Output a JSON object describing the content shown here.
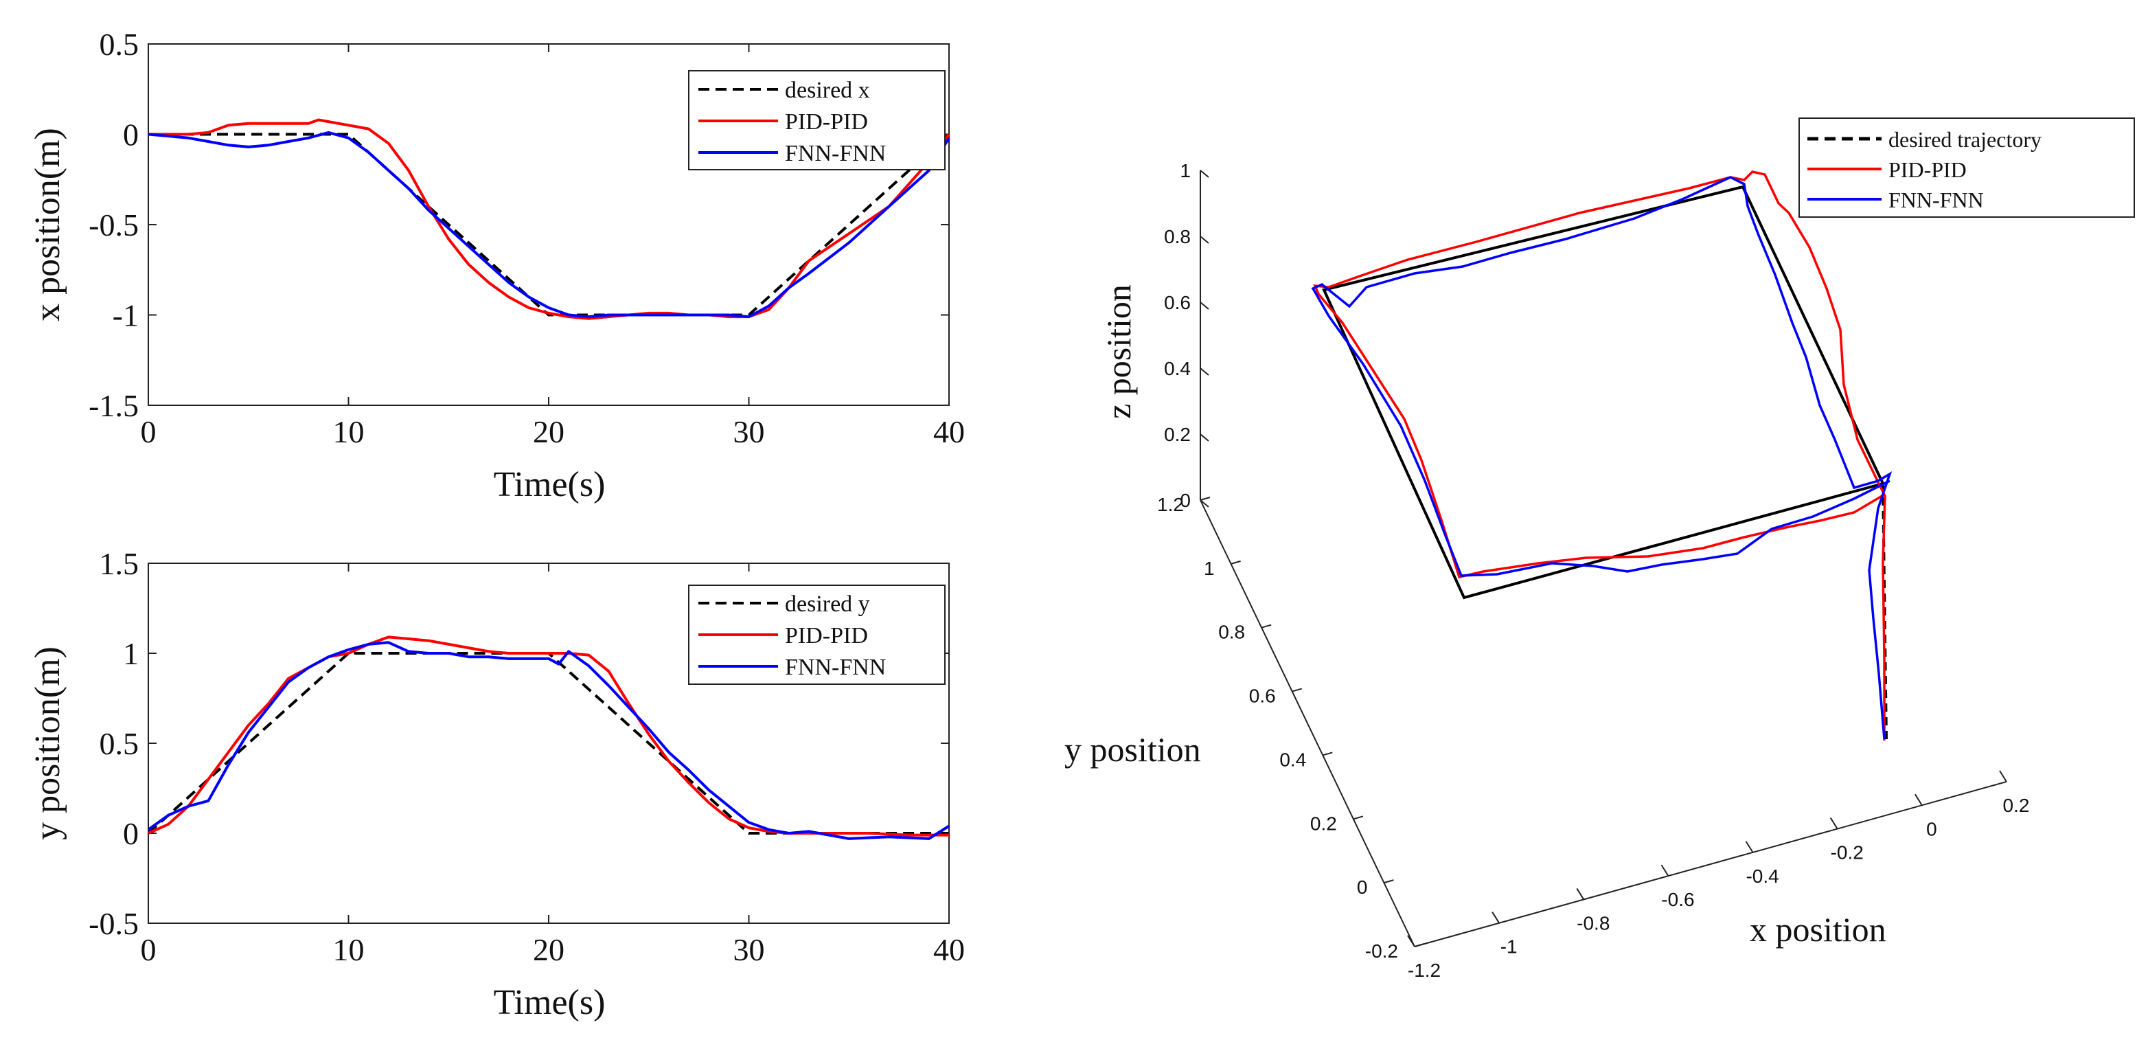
{
  "chart_data": [
    {
      "type": "line",
      "id": "x_vs_time",
      "xlabel": "Time(s)",
      "ylabel": "x position(m)",
      "xlim": [
        0,
        40
      ],
      "ylim": [
        -1.5,
        0.5
      ],
      "xticks": [
        0,
        10,
        20,
        30,
        40
      ],
      "xtick_labels": [
        "0",
        "10",
        "20",
        "30",
        "40"
      ],
      "yticks": [
        0.5,
        0,
        -0.5,
        -1,
        -1.5
      ],
      "ytick_labels": [
        "0.5",
        "0",
        "-0.5",
        "-1",
        "-1.5"
      ],
      "legend_position": "top-right",
      "series": [
        {
          "name": "desired x",
          "color": "#000000",
          "dash": "dashed",
          "x": [
            0,
            10,
            20,
            30,
            40
          ],
          "y": [
            0,
            0,
            -1,
            -1,
            0
          ]
        },
        {
          "name": "PID-PID",
          "color": "#ff0000",
          "dash": "solid",
          "x": [
            0,
            2,
            3,
            4,
            5,
            7,
            8,
            8.5,
            9,
            10,
            11,
            12,
            13,
            14,
            15,
            16,
            17,
            18,
            19,
            20,
            21,
            22,
            23,
            24,
            25,
            26,
            27,
            28,
            29,
            30,
            31,
            32,
            33,
            35,
            37,
            39,
            40
          ],
          "y": [
            0,
            0,
            0.01,
            0.05,
            0.06,
            0.06,
            0.06,
            0.08,
            0.07,
            0.05,
            0.03,
            -0.05,
            -0.2,
            -0.4,
            -0.58,
            -0.72,
            -0.82,
            -0.9,
            -0.96,
            -0.99,
            -1.01,
            -1.02,
            -1.01,
            -1.0,
            -0.99,
            -0.99,
            -1.0,
            -1.0,
            -1.01,
            -1.01,
            -0.97,
            -0.85,
            -0.7,
            -0.55,
            -0.4,
            -0.15,
            0.0
          ]
        },
        {
          "name": "FNN-FNN",
          "color": "#0000ff",
          "dash": "solid",
          "x": [
            0,
            2,
            3,
            4,
            5,
            6,
            7,
            8,
            9,
            10,
            11,
            12,
            13,
            14,
            15,
            16,
            17,
            18,
            19,
            20,
            21,
            22,
            23,
            24,
            25,
            26,
            27,
            28,
            29,
            30,
            31,
            32,
            33,
            35,
            37,
            39,
            40
          ],
          "y": [
            0,
            -0.02,
            -0.04,
            -0.06,
            -0.07,
            -0.06,
            -0.04,
            -0.02,
            0.01,
            -0.02,
            -0.1,
            -0.2,
            -0.3,
            -0.42,
            -0.52,
            -0.62,
            -0.72,
            -0.82,
            -0.9,
            -0.96,
            -1.0,
            -1.01,
            -1.0,
            -1.0,
            -1.0,
            -1.0,
            -1.0,
            -1.0,
            -1.0,
            -1.01,
            -0.95,
            -0.85,
            -0.77,
            -0.6,
            -0.4,
            -0.2,
            -0.02
          ]
        }
      ]
    },
    {
      "type": "line",
      "id": "y_vs_time",
      "xlabel": "Time(s)",
      "ylabel": "y position(m)",
      "xlim": [
        0,
        40
      ],
      "ylim": [
        -0.5,
        1.5
      ],
      "xticks": [
        0,
        10,
        20,
        30,
        40
      ],
      "xtick_labels": [
        "0",
        "10",
        "20",
        "30",
        "40"
      ],
      "yticks": [
        1.5,
        1,
        0.5,
        0,
        -0.5
      ],
      "ytick_labels": [
        "1.5",
        "1",
        "0.5",
        "0",
        "-0.5"
      ],
      "legend_position": "top-right",
      "series": [
        {
          "name": "desired y",
          "color": "#000000",
          "dash": "dashed",
          "x": [
            0,
            10,
            20,
            30,
            40
          ],
          "y": [
            0,
            1,
            1,
            0,
            0
          ]
        },
        {
          "name": "PID-PID",
          "color": "#ff0000",
          "dash": "solid",
          "x": [
            0,
            1,
            2,
            3,
            4,
            5,
            6,
            7,
            8,
            9,
            10,
            11,
            12,
            13,
            14,
            15,
            16,
            17,
            18,
            19,
            20,
            21,
            22,
            23,
            24,
            25,
            26,
            27,
            28,
            29,
            30,
            31,
            32,
            34,
            36,
            38,
            40
          ],
          "y": [
            0,
            0.05,
            0.15,
            0.3,
            0.45,
            0.6,
            0.72,
            0.86,
            0.92,
            0.98,
            1.0,
            1.05,
            1.09,
            1.08,
            1.07,
            1.05,
            1.03,
            1.01,
            1.0,
            1.0,
            1.0,
            1.0,
            0.99,
            0.9,
            0.72,
            0.55,
            0.4,
            0.28,
            0.17,
            0.08,
            0.03,
            0.01,
            0.0,
            0.0,
            0.0,
            -0.01,
            -0.01
          ]
        },
        {
          "name": "FNN-FNN",
          "color": "#0000ff",
          "dash": "solid",
          "x": [
            0,
            1,
            2,
            3,
            4,
            5,
            6,
            7,
            8,
            9,
            10,
            11,
            12,
            13,
            14,
            15,
            16,
            17,
            18,
            19,
            20,
            20.5,
            21,
            22,
            23,
            24,
            25,
            26,
            27,
            28,
            29,
            30,
            31,
            32,
            33,
            35,
            37,
            39,
            40
          ],
          "y": [
            0.02,
            0.1,
            0.15,
            0.18,
            0.38,
            0.56,
            0.7,
            0.84,
            0.92,
            0.98,
            1.02,
            1.05,
            1.06,
            1.01,
            1.0,
            1.0,
            0.98,
            0.98,
            0.97,
            0.97,
            0.97,
            0.94,
            1.01,
            0.93,
            0.82,
            0.7,
            0.58,
            0.45,
            0.35,
            0.24,
            0.15,
            0.06,
            0.02,
            0.0,
            0.01,
            -0.03,
            -0.02,
            -0.03,
            0.04
          ]
        }
      ]
    },
    {
      "type": "line",
      "id": "trajectory_3d",
      "xlabel": "x position",
      "ylabel": "y position",
      "zlabel": "z position",
      "xlim": [
        -1.2,
        0.2
      ],
      "ylim": [
        -0.2,
        1.2
      ],
      "zlim": [
        0,
        1
      ],
      "xticks": [
        -1.2,
        -1,
        -0.8,
        -0.6,
        -0.4,
        -0.2,
        0,
        0.2
      ],
      "xtick_labels": [
        "-1.2",
        "-1",
        "-0.8",
        "-0.6",
        "-0.4",
        "-0.2",
        "0",
        "0.2"
      ],
      "yticks": [
        -0.2,
        0,
        0.2,
        0.4,
        0.6,
        0.8,
        1,
        1.2
      ],
      "ytick_labels": [
        "-0.2",
        "0",
        "0.2",
        "0.4",
        "0.6",
        "0.8",
        "1",
        "1.2"
      ],
      "zticks": [
        0,
        0.2,
        0.4,
        0.6,
        0.8,
        1
      ],
      "ztick_labels": [
        "0",
        "0.2",
        "0.4",
        "0.6",
        "0.8",
        "1"
      ],
      "legend_position": "top-right",
      "series": [
        {
          "name": "desired trajectory",
          "color": "#000000",
          "dash": "solid"
        },
        {
          "name": "PID-PID",
          "color": "#ff0000",
          "dash": "solid"
        },
        {
          "name": "FNN-FNN",
          "color": "#0000ff",
          "dash": "solid"
        }
      ]
    }
  ]
}
